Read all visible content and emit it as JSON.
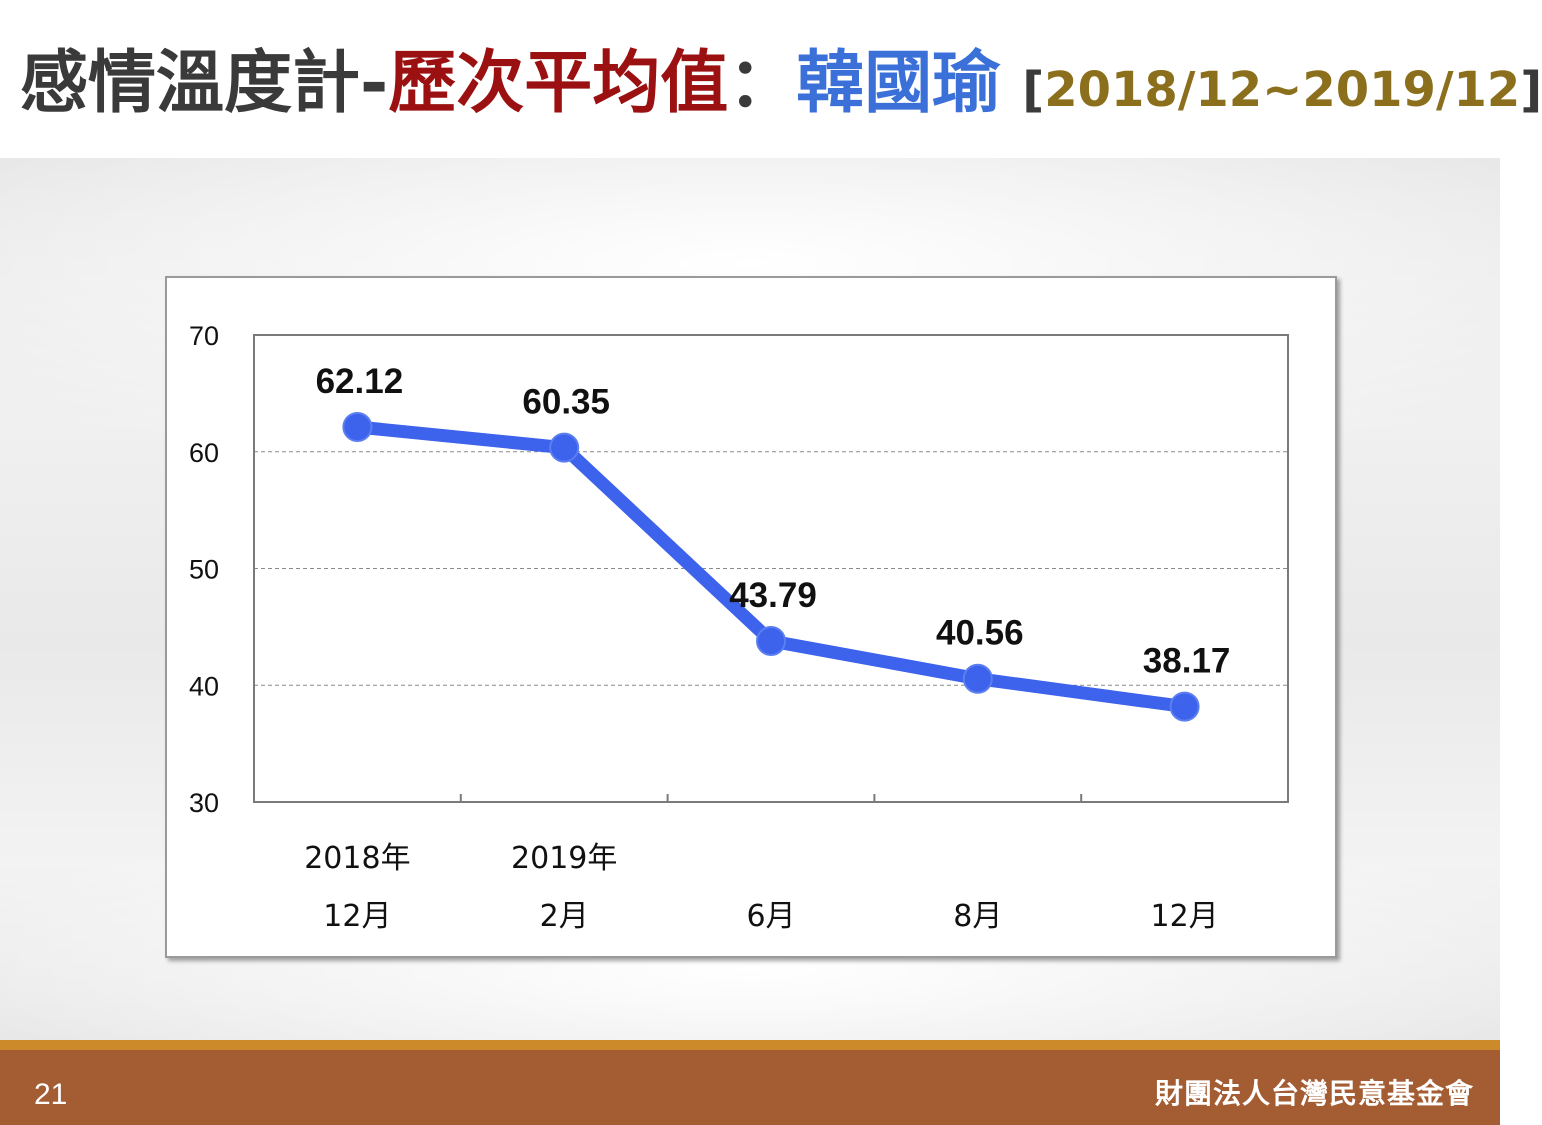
{
  "header": {
    "title_part1": "感情溫度計-",
    "title_part2": "歷次平均值",
    "title_sep": "：",
    "title_name": "韓國瑜",
    "range_open": "[",
    "range_value": "2018/12~2019/12",
    "range_close": "]"
  },
  "colors": {
    "title_dark": "#3a3a3a",
    "title_red": "#9b1010",
    "title_blue": "#3a70d8",
    "range_gold": "#8b6f1c",
    "series_line": "#3d62ec",
    "footer_bg": "#a45c33",
    "footer_stripe": "#cc8a2a"
  },
  "chart_data": {
    "type": "line",
    "categories": [
      [
        "2018年",
        "12月"
      ],
      [
        "2019年",
        "2月"
      ],
      [
        "",
        "6月"
      ],
      [
        "",
        "8月"
      ],
      [
        "",
        "12月"
      ]
    ],
    "series": [
      {
        "values": [
          62.12,
          60.35,
          43.79,
          40.56,
          38.17
        ],
        "labels": [
          "62.12",
          "60.35",
          "43.79",
          "40.56",
          "38.17"
        ]
      }
    ],
    "ylim": [
      30,
      70
    ],
    "yticks": [
      30,
      40,
      50,
      60,
      70
    ],
    "grid": true,
    "legend": "none"
  },
  "footer": {
    "page_number": "21",
    "organization": "財團法人台灣民意基金會"
  }
}
